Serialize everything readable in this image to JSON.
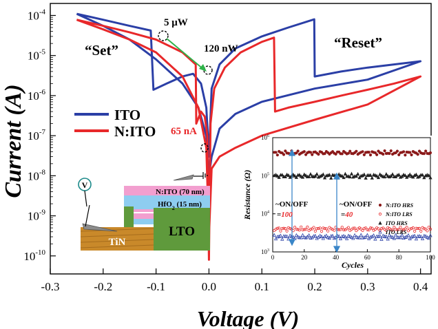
{
  "chart_data": [
    {
      "type": "line",
      "xlabel": "Voltage (V)",
      "ylabel": "Current (A)",
      "xlim": [
        -0.3,
        0.42
      ],
      "ylim_exponent": [
        -10.45,
        -3.7
      ],
      "y_scale": "log",
      "x_ticks": [
        "-0.3",
        "-0.2",
        "-0.1",
        "0.0",
        "0.1",
        "0.2",
        "0.3",
        "0.4"
      ],
      "y_ticks": [
        {
          "base": "10",
          "exp": "-4",
          "value": 0.0001
        },
        {
          "base": "10",
          "exp": "-5",
          "value": 1e-05
        },
        {
          "base": "10",
          "exp": "-6",
          "value": 1e-06
        },
        {
          "base": "10",
          "exp": "-7",
          "value": 1e-07
        },
        {
          "base": "10",
          "exp": "-8",
          "value": 1e-08
        },
        {
          "base": "10",
          "exp": "-9",
          "value": 1e-09
        },
        {
          "base": "10",
          "exp": "-10",
          "value": 1e-10
        }
      ],
      "legend_position": "middle-left",
      "series": [
        {
          "name": "ITO",
          "color": "#2b3fa6",
          "points": [
            [
              -0.25,
              0.00011
            ],
            [
              -0.2,
              7.8e-05
            ],
            [
              -0.15,
              5.5e-05
            ],
            [
              -0.11,
              4.2e-05
            ],
            [
              -0.105,
              1.4e-06
            ],
            [
              -0.08,
              2e-06
            ],
            [
              -0.05,
              3e-06
            ],
            [
              -0.03,
              3.5e-06
            ],
            [
              -0.015,
              2e-06
            ],
            [
              -0.005,
              5e-07
            ],
            [
              0.0,
              3e-08
            ],
            [
              0.005,
              1.5e-06
            ],
            [
              0.02,
              6e-06
            ],
            [
              0.05,
              1.5e-05
            ],
            [
              0.1,
              3e-05
            ],
            [
              0.15,
              5e-05
            ],
            [
              0.199,
              8e-05
            ],
            [
              0.2,
              3e-06
            ],
            [
              0.25,
              4e-06
            ],
            [
              0.3,
              5e-06
            ],
            [
              0.35,
              6e-06
            ],
            [
              0.4,
              7.2e-06
            ],
            [
              0.3,
              2.5e-06
            ],
            [
              0.2,
              1.5e-06
            ],
            [
              0.1,
              7e-07
            ],
            [
              0.05,
              3.5e-07
            ],
            [
              0.02,
              1.5e-07
            ],
            [
              0.005,
              3e-08
            ],
            [
              0.0,
              1e-08
            ],
            [
              -0.005,
              1e-07
            ],
            [
              -0.02,
              5e-07
            ],
            [
              -0.05,
              2e-06
            ],
            [
              -0.1,
              8e-06
            ],
            [
              -0.15,
              2.5e-05
            ],
            [
              -0.2,
              5.5e-05
            ],
            [
              -0.25,
              0.00011
            ]
          ]
        },
        {
          "name": "N:ITO",
          "color": "#e8282a",
          "points": [
            [
              -0.25,
              7.8e-05
            ],
            [
              -0.2,
              5.5e-05
            ],
            [
              -0.15,
              3.8e-05
            ],
            [
              -0.1,
              2.5e-05
            ],
            [
              -0.05,
              1.2e-05
            ],
            [
              -0.025,
              6e-06
            ],
            [
              -0.024,
              2e-07
            ],
            [
              -0.015,
              4e-07
            ],
            [
              -0.008,
              3e-07
            ],
            [
              -0.003,
              1e-07
            ],
            [
              0.0,
              8e-11
            ],
            [
              0.003,
              2e-07
            ],
            [
              0.01,
              1.5e-06
            ],
            [
              0.03,
              5e-06
            ],
            [
              0.06,
              1.2e-05
            ],
            [
              0.1,
              2.2e-05
            ],
            [
              0.123,
              2.8e-05
            ],
            [
              0.125,
              4e-07
            ],
            [
              0.15,
              5e-07
            ],
            [
              0.2,
              7e-07
            ],
            [
              0.25,
              1e-06
            ],
            [
              0.3,
              1.4e-06
            ],
            [
              0.35,
              2e-06
            ],
            [
              0.4,
              3e-06
            ],
            [
              0.3,
              6e-07
            ],
            [
              0.2,
              2.5e-07
            ],
            [
              0.1,
              1e-07
            ],
            [
              0.05,
              5e-08
            ],
            [
              0.02,
              3e-08
            ],
            [
              0.005,
              1.5e-08
            ],
            [
              0.0,
              3e-10
            ],
            [
              -0.005,
              5e-08
            ],
            [
              -0.02,
              5e-07
            ],
            [
              -0.05,
              3e-06
            ],
            [
              -0.1,
              1.2e-05
            ],
            [
              -0.15,
              2.5e-05
            ],
            [
              -0.2,
              4.5e-05
            ],
            [
              -0.25,
              7.8e-05
            ]
          ]
        }
      ],
      "annotations": {
        "set": "“Set”",
        "reset": "“Reset”",
        "power_high": "5 μW",
        "power_low": "120 nW",
        "current_low": "65 nA"
      },
      "legend": [
        {
          "name": "ITO",
          "color": "#2b3fa6"
        },
        {
          "name": "N:ITO",
          "color": "#e8282a"
        }
      ]
    },
    {
      "type": "scatter",
      "xlabel": "Cycles",
      "ylabel": "Resistance (Ω)",
      "xlim": [
        0,
        100
      ],
      "y_scale": "log",
      "ylim_exponent": [
        3,
        6
      ],
      "x_ticks": [
        "0",
        "20",
        "40",
        "60",
        "80",
        "100"
      ],
      "y_ticks": [
        {
          "base": "10",
          "exp": "6"
        },
        {
          "base": "10",
          "exp": "5"
        },
        {
          "base": "10",
          "exp": "4"
        },
        {
          "base": "10",
          "exp": "3"
        }
      ],
      "series": [
        {
          "name": "N:ITO HRS",
          "color": "#8b1a1a",
          "marker": "filled-circle",
          "approx_value": 400000.0
        },
        {
          "name": "N:ITO LRS",
          "color": "#e8282a",
          "marker": "open-circle",
          "approx_value": 4000.0
        },
        {
          "name": "ITO HRS",
          "color": "#222222",
          "marker": "filled-triangle",
          "approx_value": 100000.0
        },
        {
          "name": "ITO LRS",
          "color": "#2b3fa6",
          "marker": "open-triangle",
          "approx_value": 2500.0
        }
      ],
      "annotations": [
        {
          "label": "~ON/OFF",
          "value_prefix": "=",
          "value": "100"
        },
        {
          "label": "~ON/OFF",
          "value_prefix": "=",
          "value": "40"
        }
      ]
    }
  ],
  "schematic": {
    "probe": "V",
    "layer_top": "N:ITO (70 nm)",
    "layer_oxide": "HfO",
    "layer_oxide_sub": "2",
    "layer_oxide_thickness": " (15 nm)",
    "bottom_electrode": "TiN",
    "substrate": "LTO",
    "colors": {
      "nito": "#f29fcf",
      "hfo2": "#8ecdf0",
      "lto": "#5f9a3c",
      "tin": "#c9892a"
    }
  }
}
